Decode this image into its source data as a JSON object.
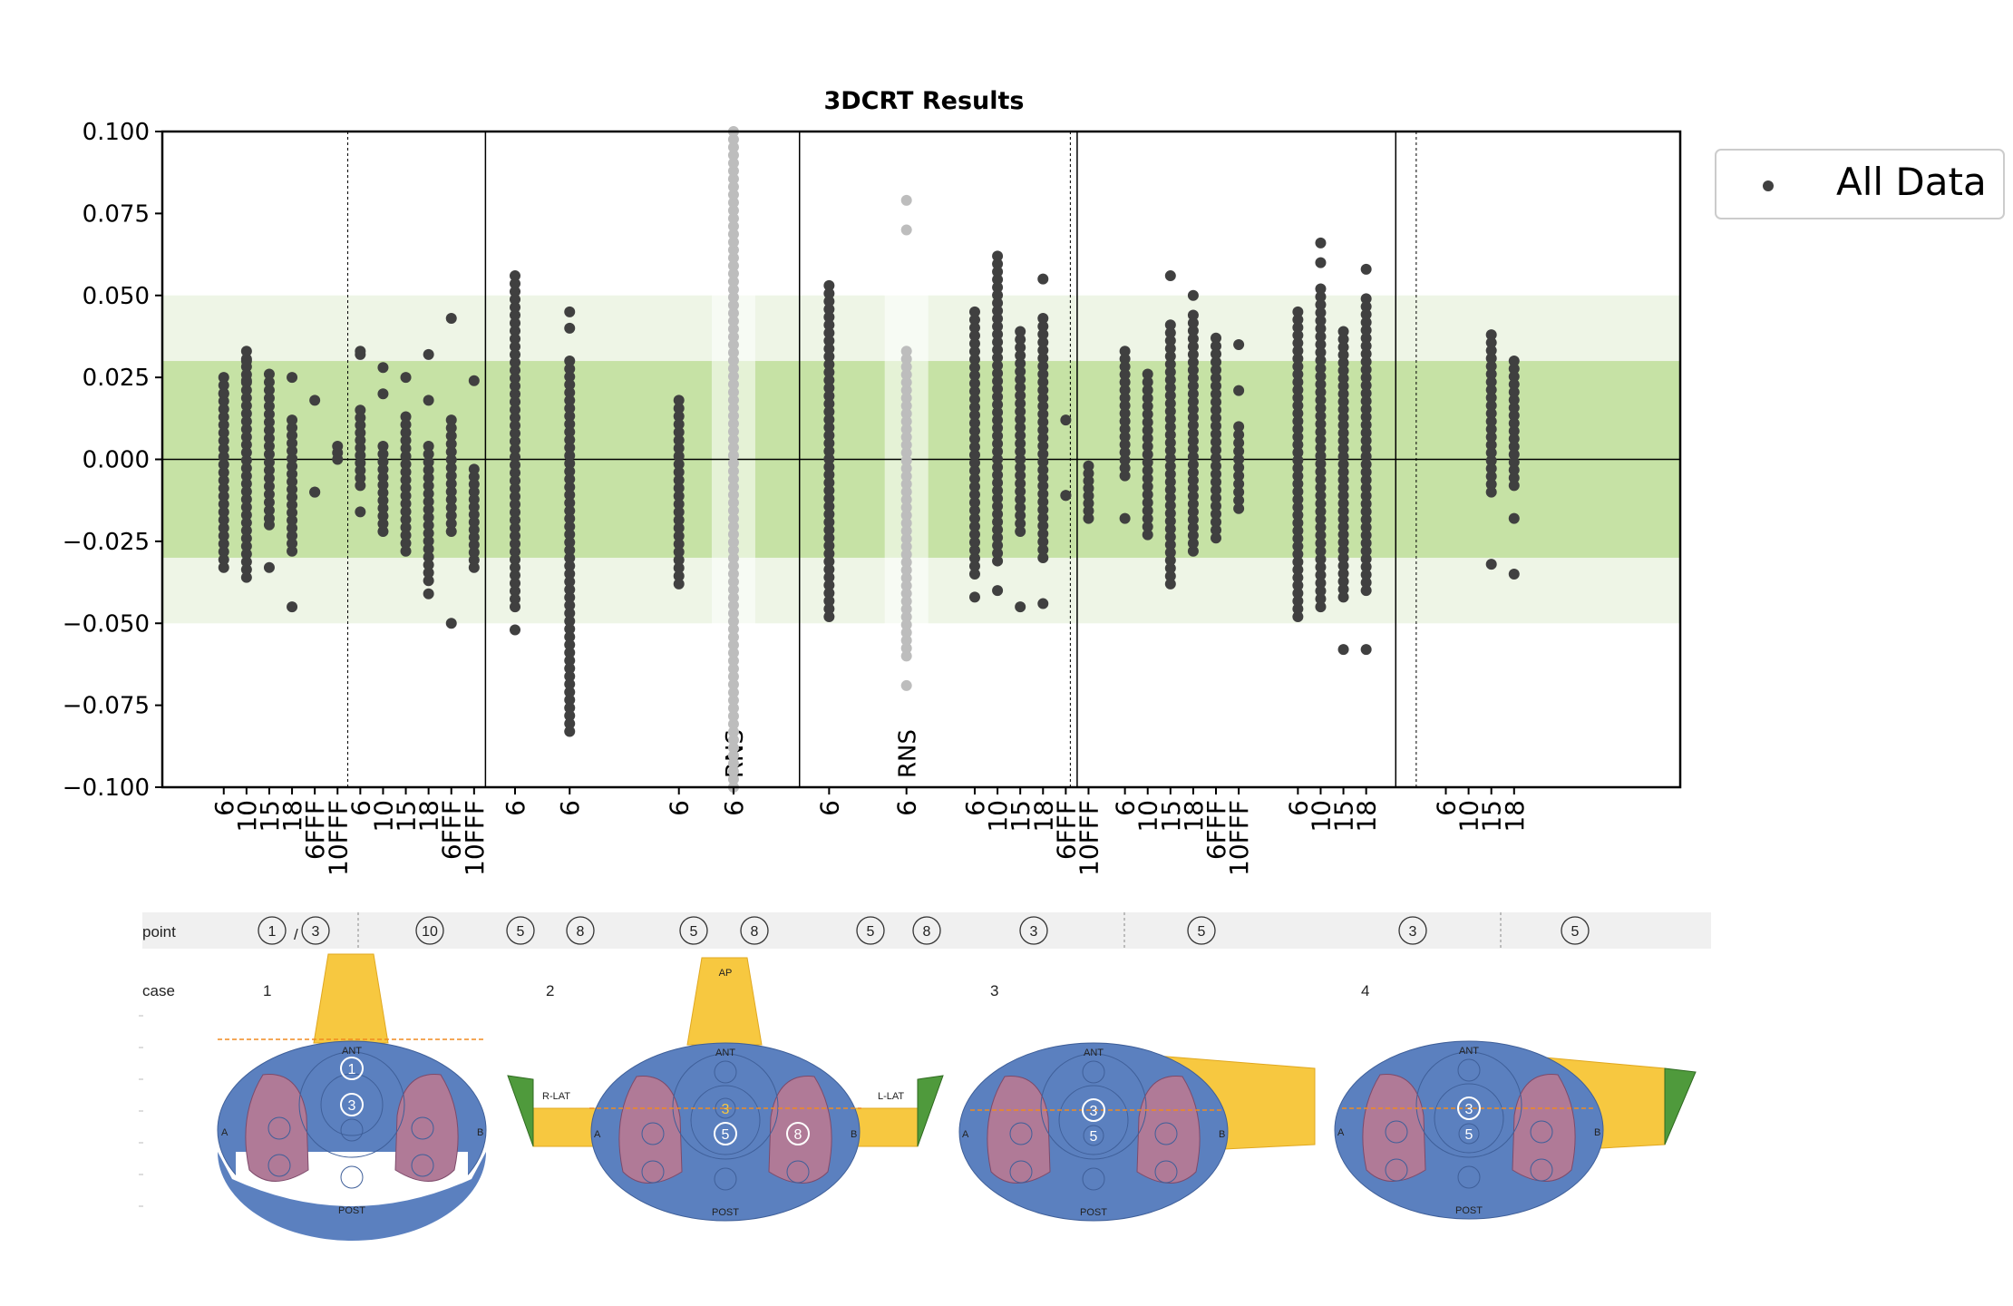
{
  "chart_data": {
    "type": "scatter",
    "title": "3DCRT Results",
    "ylim": [
      -0.1,
      0.1
    ],
    "yticks": [
      "0.100",
      "0.075",
      "0.050",
      "0.025",
      "0.000",
      "−0.025",
      "−0.050",
      "−0.075",
      "−0.100"
    ],
    "bands": [
      {
        "from": -0.05,
        "to": 0.05,
        "color": "#eef5e6"
      },
      {
        "from": -0.03,
        "to": 0.03,
        "color": "#c6e2a5"
      }
    ],
    "legend": {
      "label": "All Data",
      "location": "upper right outside"
    },
    "colors": {
      "data": "#404040",
      "rns": "#bdbdbd",
      "frame": "#000000"
    },
    "categories": [
      {
        "label": "6",
        "x": 1,
        "min": -0.033,
        "max": 0.025,
        "extra": [
          0.02
        ]
      },
      {
        "label": "10",
        "x": 2,
        "min": -0.036,
        "max": 0.033,
        "extra": [
          0.03,
          0.024
        ]
      },
      {
        "label": "15",
        "x": 3,
        "min": -0.018,
        "max": 0.026,
        "extra": [
          -0.033,
          -0.02
        ]
      },
      {
        "label": "18",
        "x": 4,
        "min": -0.028,
        "max": 0.012,
        "extra": [
          0.025,
          -0.045
        ]
      },
      {
        "label": "6FFF",
        "x": 5,
        "min": -0.01,
        "max": -0.01,
        "extra": [
          0.018
        ]
      },
      {
        "label": "10FFF",
        "x": 6,
        "min": 0.0,
        "max": 0.004,
        "extra": []
      },
      {
        "label": "6",
        "x": 7,
        "min": -0.008,
        "max": 0.015,
        "extra": [
          0.033,
          0.032,
          -0.016
        ]
      },
      {
        "label": "10",
        "x": 8,
        "min": -0.022,
        "max": 0.004,
        "extra": [
          0.028,
          0.02
        ]
      },
      {
        "label": "15",
        "x": 9,
        "min": -0.028,
        "max": 0.013,
        "extra": [
          0.025
        ]
      },
      {
        "label": "18",
        "x": 10,
        "min": -0.037,
        "max": 0.004,
        "extra": [
          0.032,
          0.018,
          -0.041
        ]
      },
      {
        "label": "6FFF",
        "x": 11,
        "min": -0.022,
        "max": 0.012,
        "extra": [
          0.043,
          -0.05
        ]
      },
      {
        "label": "10FFF",
        "x": 12,
        "min": -0.033,
        "max": -0.003,
        "extra": [
          0.024
        ]
      },
      {
        "label": "6",
        "x": 13.8,
        "min": -0.045,
        "max": 0.056,
        "extra": [
          -0.052
        ]
      },
      {
        "label": "6",
        "x": 16.2,
        "min": -0.083,
        "max": 0.03,
        "extra": [
          0.045,
          0.04
        ]
      },
      {
        "label": "6",
        "x": 21,
        "min": -0.038,
        "max": 0.018,
        "extra": []
      },
      {
        "label": "6",
        "x": 23.4,
        "min": -0.1,
        "max": 0.1,
        "rns": true,
        "extra": []
      },
      {
        "label": "6",
        "x": 27.6,
        "min": -0.048,
        "max": 0.053,
        "extra": []
      },
      {
        "label": "6",
        "x": 31,
        "min": -0.06,
        "max": 0.033,
        "rns": true,
        "extra": [
          0.079,
          0.07,
          -0.069
        ]
      },
      {
        "label": "6",
        "x": 34,
        "min": -0.035,
        "max": 0.045,
        "extra": [
          -0.042
        ]
      },
      {
        "label": "10",
        "x": 35,
        "min": -0.031,
        "max": 0.062,
        "extra": [
          -0.04
        ]
      },
      {
        "label": "15",
        "x": 36,
        "min": -0.022,
        "max": 0.039,
        "extra": [
          -0.045
        ]
      },
      {
        "label": "18",
        "x": 37,
        "min": -0.03,
        "max": 0.043,
        "extra": [
          0.055,
          -0.044
        ]
      },
      {
        "label": "6FFF",
        "x": 38,
        "min": -0.011,
        "max": -0.011,
        "extra": [
          0.012
        ]
      },
      {
        "label": "10FFF",
        "x": 39,
        "min": -0.018,
        "max": -0.002,
        "extra": []
      },
      {
        "label": "6",
        "x": 40.6,
        "min": -0.005,
        "max": 0.033,
        "extra": [
          -0.018
        ]
      },
      {
        "label": "10",
        "x": 41.6,
        "min": -0.023,
        "max": 0.026,
        "extra": []
      },
      {
        "label": "15",
        "x": 42.6,
        "min": -0.038,
        "max": 0.041,
        "extra": [
          0.056
        ]
      },
      {
        "label": "18",
        "x": 43.6,
        "min": -0.028,
        "max": 0.044,
        "extra": [
          0.05
        ]
      },
      {
        "label": "6FFF",
        "x": 44.6,
        "min": -0.024,
        "max": 0.037,
        "extra": []
      },
      {
        "label": "10FFF",
        "x": 45.6,
        "min": -0.015,
        "max": 0.01,
        "extra": [
          0.035,
          0.021
        ]
      },
      {
        "label": "6",
        "x": 48.2,
        "min": -0.048,
        "max": 0.045,
        "extra": []
      },
      {
        "label": "10",
        "x": 49.2,
        "min": -0.045,
        "max": 0.052,
        "extra": [
          0.066,
          0.06
        ]
      },
      {
        "label": "15",
        "x": 50.2,
        "min": -0.042,
        "max": 0.039,
        "extra": [
          -0.058
        ]
      },
      {
        "label": "18",
        "x": 51.2,
        "min": -0.04,
        "max": 0.049,
        "extra": [
          0.058,
          -0.058
        ]
      },
      {
        "label": "6",
        "x": 54.7,
        "min": 0,
        "max": 0,
        "empty": true,
        "extra": []
      },
      {
        "label": "10",
        "x": 55.7,
        "min": 0,
        "max": 0,
        "empty": true,
        "extra": []
      },
      {
        "label": "15",
        "x": 56.7,
        "min": -0.01,
        "max": 0.038,
        "extra": [
          -0.032
        ]
      },
      {
        "label": "18",
        "x": 57.7,
        "min": -0.008,
        "max": 0.03,
        "extra": [
          -0.018,
          -0.035
        ]
      }
    ],
    "xrange": [
      -1.7,
      65
    ],
    "solid_dividers": [
      12.5,
      26.3,
      38.5,
      52.5
    ],
    "dashed_dividers": [
      6.45,
      38.2,
      53.4
    ],
    "rns_bands": [
      {
        "x": 23.4,
        "label": "RNS"
      },
      {
        "x": 31,
        "label": "RNS"
      }
    ]
  },
  "diagram": {
    "row_point_label": "point",
    "row_case_label": "case",
    "point_markers": [
      "1",
      "3",
      "10",
      "5",
      "8",
      "5",
      "8",
      "5",
      "8",
      "3",
      "5",
      "3",
      "5"
    ],
    "point_slash": "/",
    "cases": [
      "1",
      "2",
      "3",
      "4"
    ],
    "labels": {
      "ant": "ANT",
      "post": "POST",
      "ap": "AP",
      "rlat": "R-LAT",
      "llat": "L-LAT",
      "a": "A",
      "b": "B"
    },
    "phantom_points": [
      "1",
      "3",
      "10",
      "3",
      "5",
      "8",
      "3",
      "5",
      "3",
      "5"
    ],
    "colors": {
      "body": "#5b80bf",
      "lung": "#b07a97",
      "beam": "#f7c840",
      "wedge": "#4f9a3c",
      "strip": "#f0f0f0"
    }
  }
}
